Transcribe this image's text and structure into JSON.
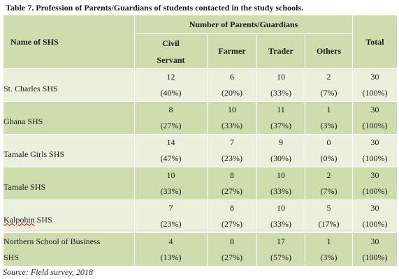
{
  "caption": "Table 7. Profession of Parents/Guardians of students contacted in the study schools.",
  "headers": {
    "school": "Name of SHS",
    "group": "Number of Parents/Guardians",
    "civil_line1": "Civil",
    "civil_line2": "Servant",
    "farmer": "Farmer",
    "trader": "Trader",
    "others": "Others",
    "total": "Total"
  },
  "rows": [
    {
      "name_line1": "St. Charles SHS",
      "name_line2": "",
      "civil": {
        "n": "12",
        "p": "(40%)"
      },
      "farmer": {
        "n": "6",
        "p": "(20%)"
      },
      "trader": {
        "n": "10",
        "p": "(33%)"
      },
      "others": {
        "n": "2",
        "p": "(7%)"
      },
      "total": {
        "n": "30",
        "p": "(100%)"
      }
    },
    {
      "name_line1": "Ghana SHS",
      "name_line2": "",
      "civil": {
        "n": "8",
        "p": "(27%)"
      },
      "farmer": {
        "n": "10",
        "p": "(33%)"
      },
      "trader": {
        "n": "11",
        "p": "(37%)"
      },
      "others": {
        "n": "1",
        "p": "(3%)"
      },
      "total": {
        "n": "30",
        "p": "(100%)"
      }
    },
    {
      "name_line1": "Tamale Girls SHS",
      "name_line2": "",
      "civil": {
        "n": "14",
        "p": "(47%)"
      },
      "farmer": {
        "n": "7",
        "p": "(23%)"
      },
      "trader": {
        "n": "9",
        "p": "(30%)"
      },
      "others": {
        "n": "0",
        "p": "(0%)"
      },
      "total": {
        "n": "30",
        "p": "(100%)"
      }
    },
    {
      "name_line1": "Tamale SHS",
      "name_line2": "",
      "civil": {
        "n": "10",
        "p": "(33%)"
      },
      "farmer": {
        "n": "8",
        "p": "(27%)"
      },
      "trader": {
        "n": "10",
        "p": "(33%)"
      },
      "others": {
        "n": "2",
        "p": "(7%)"
      },
      "total": {
        "n": "30",
        "p": "(100%)"
      }
    },
    {
      "name_line1": "Kalpohin",
      "name_line1b": " SHS",
      "name_line2": "",
      "civil": {
        "n": "7",
        "p": "(23%)"
      },
      "farmer": {
        "n": "8",
        "p": "(27%)"
      },
      "trader": {
        "n": "10",
        "p": "(33%)"
      },
      "others": {
        "n": "5",
        "p": "(17%)"
      },
      "total": {
        "n": "30",
        "p": "(100%)"
      }
    },
    {
      "name_line1": "Northern School of Business",
      "name_line2": "SHS",
      "civil": {
        "n": "4",
        "p": "(13%)"
      },
      "farmer": {
        "n": "8",
        "p": "(27%)"
      },
      "trader": {
        "n": "17",
        "p": "(57%)"
      },
      "others": {
        "n": "1",
        "p": "(3%)"
      },
      "total": {
        "n": "30",
        "p": "(100%)"
      }
    }
  ],
  "source": "Source: Field survey, 2018",
  "colors": {
    "header_bg": "#cfdcad",
    "row_light": "#eaf0dc",
    "row_dark": "#cfdcad"
  }
}
